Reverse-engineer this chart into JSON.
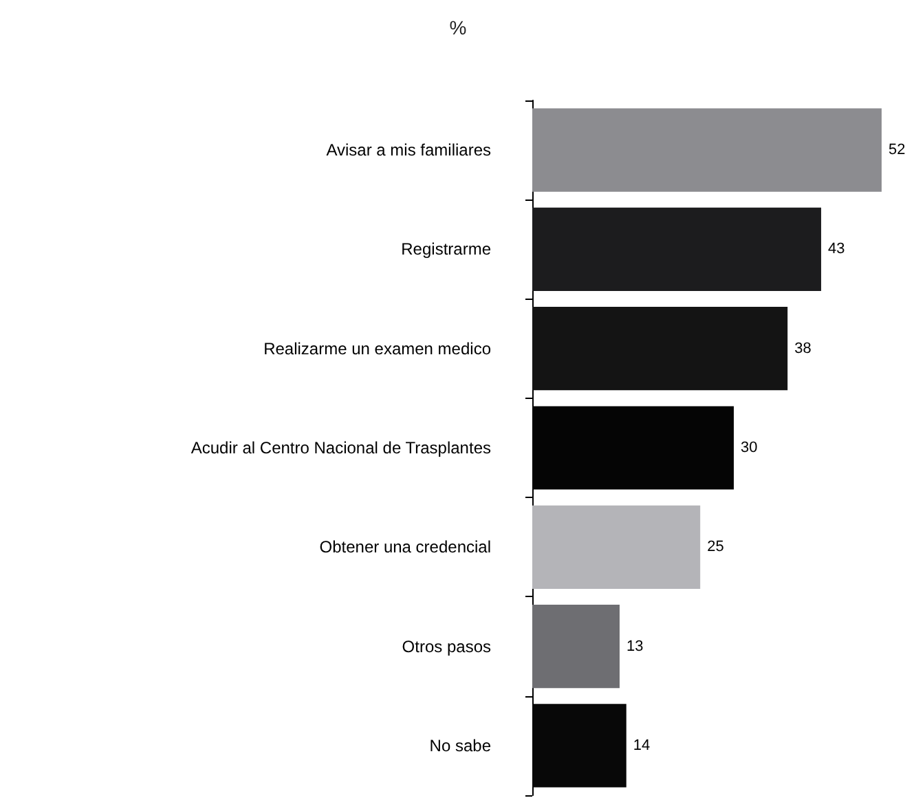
{
  "chart_data": {
    "type": "bar",
    "orientation": "horizontal",
    "title": "%",
    "categories": [
      "Avisar a mis familiares",
      "Registrarme",
      "Realizarme un examen medico",
      "Acudir al Centro Nacional de Trasplantes",
      "Obtener una credencial",
      "Otros pasos",
      "No sabe"
    ],
    "values": [
      52,
      43,
      38,
      30,
      25,
      13,
      14
    ],
    "colors": [
      "#8c8c90",
      "#1c1c1e",
      "#141414",
      "#050505",
      "#b4b4b8",
      "#6e6e72",
      "#080808"
    ],
    "data_labels": true
  }
}
